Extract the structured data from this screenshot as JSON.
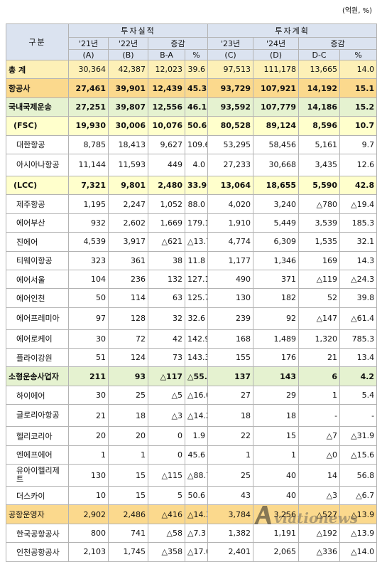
{
  "unit": "(억원, %)",
  "header": {
    "gubun": "구분",
    "actual": "투자실적",
    "plan": "투자계획",
    "change": "증감",
    "y21": "'21년",
    "y22": "'22년",
    "y23": "'23년",
    "y24": "'24년",
    "a": "(A)",
    "b": "(B)",
    "ba": "B-A",
    "pct": "%",
    "c": "(C)",
    "d": "(D)",
    "dc": "D-C"
  },
  "rows": [
    {
      "label": "총 계",
      "a": "30,364",
      "b": "42,387",
      "ba": "12,023",
      "p1": "39.6",
      "c": "97,513",
      "d": "111,178",
      "dc": "13,665",
      "p2": "14.0"
    },
    {
      "label": "항공사",
      "a": "27,461",
      "b": "39,901",
      "ba": "12,439",
      "p1": "45.3",
      "c": "93,729",
      "d": "107,921",
      "dc": "14,192",
      "p2": "15.1"
    },
    {
      "label": "국내국제운송",
      "a": "27,251",
      "b": "39,807",
      "ba": "12,556",
      "p1": "46.1",
      "c": "93,592",
      "d": "107,779",
      "dc": "14,186",
      "p2": "15.2"
    },
    {
      "label": "(FSC)",
      "a": "19,930",
      "b": "30,006",
      "ba": "10,076",
      "p1": "50.6",
      "c": "80,528",
      "d": "89,124",
      "dc": "8,596",
      "p2": "10.7"
    },
    {
      "label": "대한항공",
      "a": "8,785",
      "b": "18,413",
      "ba": "9,627",
      "p1": "109.6",
      "c": "53,295",
      "d": "58,456",
      "dc": "5,161",
      "p2": "9.7"
    },
    {
      "label": "아시아나항공",
      "a": "11,144",
      "b": "11,593",
      "ba": "449",
      "p1": "4.0",
      "c": "27,233",
      "d": "30,668",
      "dc": "3,435",
      "p2": "12.6"
    },
    {
      "label": "(LCC)",
      "a": "7,321",
      "b": "9,801",
      "ba": "2,480",
      "p1": "33.9",
      "c": "13,064",
      "d": "18,655",
      "dc": "5,590",
      "p2": "42.8"
    },
    {
      "label": "제주항공",
      "a": "1,195",
      "b": "2,247",
      "ba": "1,052",
      "p1": "88.0",
      "c": "4,020",
      "d": "3,240",
      "dc": "△780",
      "p2": "△19.4"
    },
    {
      "label": "에어부산",
      "a": "932",
      "b": "2,602",
      "ba": "1,669",
      "p1": "179.1",
      "c": "1,910",
      "d": "5,449",
      "dc": "3,539",
      "p2": "185.3"
    },
    {
      "label": "진에어",
      "a": "4,539",
      "b": "3,917",
      "ba": "△621",
      "p1": "△13.7",
      "c": "4,774",
      "d": "6,309",
      "dc": "1,535",
      "p2": "32.1"
    },
    {
      "label": "티웨이항공",
      "a": "323",
      "b": "361",
      "ba": "38",
      "p1": "11.8",
      "c": "1,177",
      "d": "1,346",
      "dc": "169",
      "p2": "14.3"
    },
    {
      "label": "에어서울",
      "a": "104",
      "b": "236",
      "ba": "132",
      "p1": "127.1",
      "c": "490",
      "d": "371",
      "dc": "△119",
      "p2": "△24.3"
    },
    {
      "label": "에어인천",
      "a": "50",
      "b": "114",
      "ba": "63",
      "p1": "125.7",
      "c": "130",
      "d": "182",
      "dc": "52",
      "p2": "39.8"
    },
    {
      "label": "에어프레미아",
      "a": "97",
      "b": "128",
      "ba": "32",
      "p1": "32.6",
      "c": "239",
      "d": "92",
      "dc": "△147",
      "p2": "△61.4"
    },
    {
      "label": "에어로케이",
      "a": "30",
      "b": "72",
      "ba": "42",
      "p1": "142.9",
      "c": "168",
      "d": "1,489",
      "dc": "1,320",
      "p2": "785.3"
    },
    {
      "label": "플라이강원",
      "a": "51",
      "b": "124",
      "ba": "73",
      "p1": "143.3",
      "c": "155",
      "d": "176",
      "dc": "21",
      "p2": "13.4"
    },
    {
      "label": "소형운송사업자",
      "a": "211",
      "b": "93",
      "ba": "△117",
      "p1": "△55.7",
      "c": "137",
      "d": "143",
      "dc": "6",
      "p2": "4.2"
    },
    {
      "label": "하이에어",
      "a": "30",
      "b": "25",
      "ba": "△5",
      "p1": "△16.0",
      "c": "27",
      "d": "29",
      "dc": "1",
      "p2": "5.4"
    },
    {
      "label": "글로리아항공",
      "a": "21",
      "b": "18",
      "ba": "△3",
      "p1": "△14.2",
      "c": "18",
      "d": "18",
      "dc": "-",
      "p2": "-"
    },
    {
      "label": "헬리코리아",
      "a": "20",
      "b": "20",
      "ba": "0",
      "p1": "1.9",
      "c": "22",
      "d": "15",
      "dc": "△7",
      "p2": "△31.9"
    },
    {
      "label": "엔에프에어",
      "a": "1",
      "b": "1",
      "ba": "0",
      "p1": "45.6",
      "c": "1",
      "d": "1",
      "dc": "△0",
      "p2": "△15.6"
    },
    {
      "label": "유아이헬리제트",
      "a": "130",
      "b": "15",
      "ba": "△115",
      "p1": "△88.7",
      "c": "25",
      "d": "40",
      "dc": "14",
      "p2": "56.8"
    },
    {
      "label": "더스카이",
      "a": "10",
      "b": "15",
      "ba": "5",
      "p1": "50.6",
      "c": "43",
      "d": "40",
      "dc": "△3",
      "p2": "△6.7"
    },
    {
      "label": "공항운영자",
      "a": "2,902",
      "b": "2,486",
      "ba": "△416",
      "p1": "△14.3",
      "c": "3,784",
      "d": "3,256",
      "dc": "△527",
      "p2": "△13.9"
    },
    {
      "label": "한국공항공사",
      "a": "800",
      "b": "741",
      "ba": "△58",
      "p1": "△7.3",
      "c": "1,382",
      "d": "1,191",
      "dc": "△192",
      "p2": "△13.9"
    },
    {
      "label": "인천공항공사",
      "a": "2,103",
      "b": "1,745",
      "ba": "△358",
      "p1": "△17.0",
      "c": "2,401",
      "d": "2,065",
      "dc": "△336",
      "p2": "△14.0"
    }
  ],
  "watermark": "Aviationews"
}
